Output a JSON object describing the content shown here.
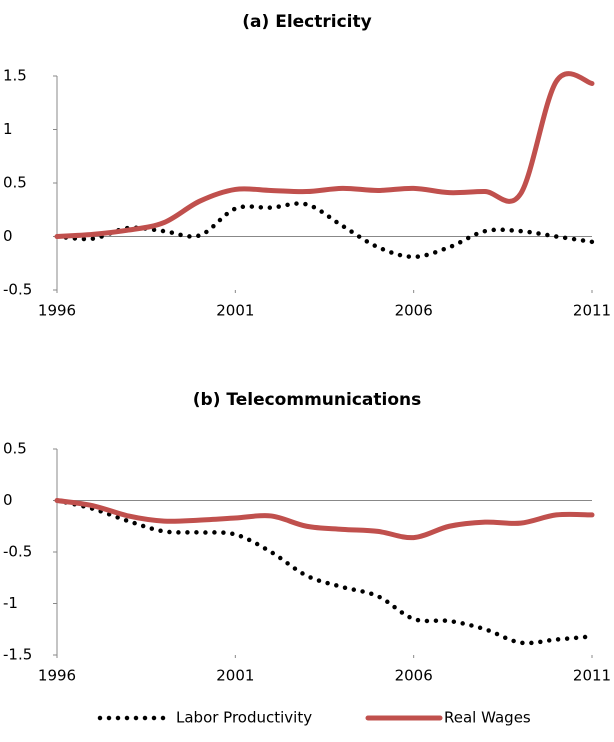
{
  "chart_data": [
    {
      "type": "line",
      "title": "(a) Electricity",
      "x": [
        1996,
        1997,
        1998,
        1999,
        2000,
        2001,
        2002,
        2003,
        2004,
        2005,
        2006,
        2007,
        2008,
        2009,
        2010,
        2011
      ],
      "xlim": [
        1996,
        2011
      ],
      "xticks": [
        1996,
        2001,
        2006,
        2011
      ],
      "ylim": [
        -0.5,
        1.5
      ],
      "yticks": [
        -0.5,
        0,
        0.5,
        1,
        1.5
      ],
      "series": [
        {
          "name": "Labor Productivity",
          "color": "#000000",
          "style": "dotted",
          "values": [
            0,
            -0.02,
            0.08,
            0.05,
            0.01,
            0.26,
            0.27,
            0.3,
            0.1,
            -0.1,
            -0.19,
            -0.1,
            0.05,
            0.05,
            0,
            -0.05
          ]
        },
        {
          "name": "Real Wages",
          "color": "#c0504d",
          "style": "solid",
          "values": [
            0,
            0.02,
            0.06,
            0.13,
            0.33,
            0.44,
            0.43,
            0.42,
            0.45,
            0.43,
            0.45,
            0.41,
            0.42,
            0.4,
            1.45,
            1.43
          ]
        }
      ]
    },
    {
      "type": "line",
      "title": "(b) Telecommunications",
      "x": [
        1996,
        1997,
        1998,
        1999,
        2000,
        2001,
        2002,
        2003,
        2004,
        2005,
        2006,
        2007,
        2008,
        2009,
        2010,
        2011
      ],
      "xlim": [
        1996,
        2011
      ],
      "xticks": [
        1996,
        2001,
        2006,
        2011
      ],
      "ylim": [
        -1.5,
        0.5
      ],
      "yticks": [
        -1.5,
        -1,
        -0.5,
        0,
        0.5
      ],
      "series": [
        {
          "name": "Labor Productivity",
          "color": "#000000",
          "style": "dotted",
          "values": [
            0,
            -0.08,
            -0.2,
            -0.3,
            -0.31,
            -0.33,
            -0.5,
            -0.73,
            -0.84,
            -0.93,
            -1.15,
            -1.17,
            -1.25,
            -1.38,
            -1.35,
            -1.32
          ]
        },
        {
          "name": "Real Wages",
          "color": "#c0504d",
          "style": "solid",
          "values": [
            0,
            -0.05,
            -0.15,
            -0.2,
            -0.19,
            -0.17,
            -0.15,
            -0.25,
            -0.28,
            -0.3,
            -0.36,
            -0.25,
            -0.21,
            -0.22,
            -0.14,
            -0.14
          ]
        }
      ]
    }
  ]
}
